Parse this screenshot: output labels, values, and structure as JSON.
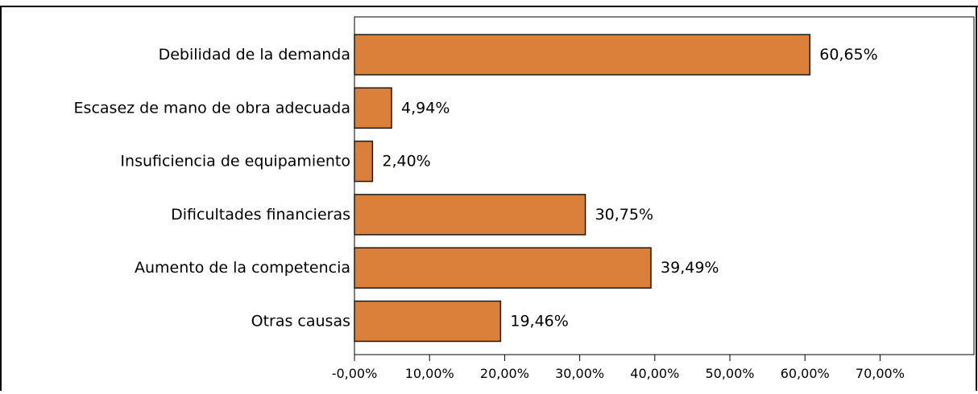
{
  "chart_data": {
    "type": "bar",
    "orientation": "horizontal",
    "title": "",
    "xlabel": "",
    "ylabel": "",
    "categories": [
      "Debilidad de la demanda",
      "Escasez de mano de obra adecuada",
      "Insuficiencia de equipamiento",
      "Dificultades financieras",
      "Aumento de la competencia",
      "Otras causas"
    ],
    "values": [
      60.65,
      4.94,
      2.4,
      30.75,
      39.49,
      19.46
    ],
    "value_labels": [
      "60,65%",
      "4,94%",
      "2,40%",
      "30,75%",
      "39,49%",
      "19,46%"
    ],
    "xlim": [
      0,
      70
    ],
    "x_ticks": [
      0,
      10,
      20,
      30,
      40,
      50,
      60,
      70
    ],
    "x_tick_labels": [
      "-0,00%",
      "10,00%",
      "20,00%",
      "30,00%",
      "40,00%",
      "50,00%",
      "60,00%",
      "70,00%"
    ],
    "grid": false,
    "legend": "none",
    "colors": {
      "bar_fill": "#DB803A",
      "bar_stroke": "#1a1a1a",
      "frame": "#000000"
    }
  }
}
